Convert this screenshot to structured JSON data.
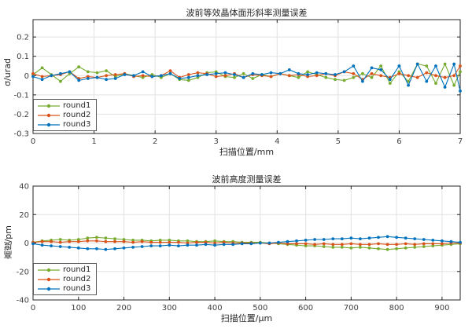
{
  "figure": {
    "background": "#ffffff",
    "axis_color": "#262626",
    "grid_color": "#e2e2e2",
    "tick_label_color": "#404040"
  },
  "chart_data": [
    {
      "type": "line",
      "title": "波前等效晶体面形斜率测量误差",
      "xlabel": "扫描位置/mm",
      "ylabel": "σ/urad",
      "xlim": [
        0,
        7
      ],
      "ylim": [
        -0.3,
        0.29
      ],
      "xticks": [
        0,
        1,
        2,
        3,
        4,
        5,
        6,
        7
      ],
      "yticks": [
        -0.3,
        -0.2,
        -0.1,
        0,
        0.1,
        0.2
      ],
      "grid": true,
      "legend_position": "southwest",
      "x": [
        0,
        0.15,
        0.3,
        0.45,
        0.6,
        0.75,
        0.9,
        1.05,
        1.2,
        1.35,
        1.5,
        1.65,
        1.8,
        1.95,
        2.1,
        2.25,
        2.4,
        2.55,
        2.7,
        2.85,
        3.0,
        3.15,
        3.3,
        3.45,
        3.6,
        3.75,
        3.9,
        4.05,
        4.2,
        4.35,
        4.5,
        4.65,
        4.8,
        4.95,
        5.1,
        5.25,
        5.4,
        5.55,
        5.7,
        5.85,
        6.0,
        6.15,
        6.3,
        6.45,
        6.6,
        6.75,
        6.9,
        7.0
      ],
      "series": [
        {
          "name": "round1",
          "color": "#77AC30",
          "values": [
            0.005,
            0.04,
            0.005,
            -0.03,
            0.01,
            0.045,
            0.02,
            0.015,
            0.025,
            -0.005,
            0.01,
            0.0,
            -0.01,
            0.005,
            -0.01,
            0.01,
            -0.02,
            -0.025,
            -0.01,
            0.015,
            0.02,
            -0.005,
            -0.01,
            0.01,
            -0.015,
            0.005,
            -0.005,
            0.01,
            0.0,
            -0.01,
            0.02,
            0.005,
            -0.01,
            -0.02,
            -0.025,
            -0.01,
            0.01,
            -0.01,
            0.05,
            -0.04,
            0.02,
            -0.03,
            0.06,
            0.05,
            -0.04,
            0.06,
            -0.05,
            0.02
          ]
        },
        {
          "name": "round2",
          "color": "#D95319",
          "values": [
            0.01,
            -0.005,
            0.0,
            0.005,
            0.02,
            -0.015,
            -0.005,
            -0.01,
            0.0,
            0.005,
            0.01,
            -0.005,
            0.0,
            -0.005,
            0.0,
            0.025,
            -0.01,
            0.005,
            0.015,
            0.01,
            -0.005,
            0.0,
            0.01,
            -0.01,
            0.005,
            0.0,
            -0.005,
            0.01,
            0.0,
            0.005,
            -0.005,
            0.0,
            0.01,
            0.0,
            0.02,
            0.01,
            -0.02,
            0.01,
            0.0,
            -0.01,
            0.01,
            0.0,
            -0.01,
            0.015,
            0.0,
            -0.01,
            0.0,
            0.05
          ]
        },
        {
          "name": "round3",
          "color": "#0072BD",
          "values": [
            -0.005,
            -0.02,
            0.0,
            0.01,
            0.02,
            -0.025,
            -0.015,
            -0.01,
            -0.02,
            -0.015,
            0.005,
            0.0,
            0.02,
            -0.005,
            0.0,
            0.01,
            -0.015,
            -0.01,
            0.0,
            0.005,
            0.01,
            0.015,
            0.005,
            -0.01,
            0.01,
            0.005,
            0.015,
            0.01,
            0.03,
            0.01,
            0.005,
            0.015,
            0.01,
            0.005,
            0.02,
            0.05,
            -0.03,
            0.04,
            0.03,
            -0.02,
            0.05,
            -0.05,
            0.06,
            -0.03,
            0.05,
            -0.06,
            0.06,
            -0.08
          ]
        }
      ]
    },
    {
      "type": "line",
      "title": "波前高度测量误差",
      "xlabel": "扫描位置/μm",
      "ylabel": "高度/pm",
      "xlim": [
        0,
        940
      ],
      "ylim": [
        -40,
        40
      ],
      "xticks": [
        0,
        100,
        200,
        300,
        400,
        500,
        600,
        700,
        800,
        900
      ],
      "yticks": [
        -40,
        -20,
        0,
        20,
        40
      ],
      "grid": true,
      "legend_position": "southwest",
      "x": [
        0,
        20,
        40,
        60,
        80,
        100,
        120,
        140,
        160,
        180,
        200,
        220,
        240,
        260,
        280,
        300,
        320,
        340,
        360,
        380,
        400,
        420,
        440,
        460,
        480,
        500,
        520,
        540,
        560,
        580,
        600,
        620,
        640,
        660,
        680,
        700,
        720,
        740,
        760,
        780,
        800,
        820,
        840,
        860,
        880,
        900,
        920,
        940
      ],
      "series": [
        {
          "name": "round1",
          "color": "#77AC30",
          "values": [
            0.5,
            1.5,
            2.0,
            2.5,
            2.0,
            2.5,
            3.5,
            4.0,
            3.5,
            3.0,
            2.5,
            2.0,
            2.0,
            1.5,
            2.0,
            2.0,
            1.5,
            1.5,
            1.0,
            1.0,
            1.5,
            1.0,
            1.0,
            0.5,
            0.5,
            0.5,
            0.0,
            -0.5,
            -1.0,
            -1.5,
            -2.0,
            -2.0,
            -2.5,
            -3.0,
            -3.0,
            -3.5,
            -3.0,
            -3.5,
            -4.0,
            -4.5,
            -4.0,
            -3.5,
            -3.0,
            -2.5,
            -2.0,
            -1.5,
            -1.0,
            -0.5
          ]
        },
        {
          "name": "round2",
          "color": "#D95319",
          "values": [
            0.5,
            1.0,
            1.0,
            0.5,
            1.0,
            1.0,
            1.5,
            1.5,
            1.0,
            1.0,
            1.0,
            0.5,
            1.0,
            0.5,
            0.5,
            0.5,
            0.5,
            0.0,
            0.5,
            0.5,
            0.0,
            0.5,
            0.0,
            0.0,
            0.0,
            0.0,
            -0.5,
            0.0,
            -0.5,
            -0.5,
            -0.5,
            -1.0,
            -0.5,
            -1.0,
            -1.0,
            -0.5,
            -1.0,
            -1.0,
            -0.5,
            -1.0,
            -1.0,
            -0.5,
            -1.0,
            -0.5,
            -0.5,
            -0.5,
            0.0,
            0.0
          ]
        },
        {
          "name": "round3",
          "color": "#0072BD",
          "values": [
            -0.5,
            -1.5,
            -2.0,
            -2.5,
            -3.0,
            -3.5,
            -4.0,
            -4.0,
            -4.5,
            -4.0,
            -3.5,
            -3.0,
            -2.5,
            -2.0,
            -2.0,
            -1.5,
            -2.0,
            -1.5,
            -1.5,
            -1.0,
            -1.5,
            -1.0,
            -1.0,
            -0.5,
            -0.5,
            0.0,
            0.0,
            0.5,
            1.0,
            1.5,
            2.0,
            2.5,
            2.5,
            3.0,
            3.0,
            3.5,
            3.0,
            3.5,
            4.0,
            4.5,
            4.0,
            3.5,
            3.0,
            2.5,
            2.0,
            1.5,
            1.0,
            0.5
          ]
        }
      ]
    }
  ]
}
